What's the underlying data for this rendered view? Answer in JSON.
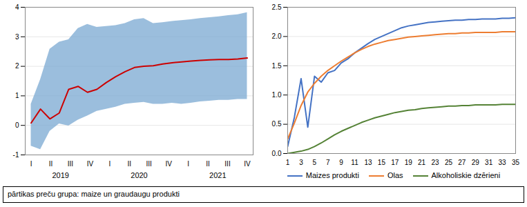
{
  "chart_data": [
    {
      "type": "line",
      "x": [
        0,
        0.4782608695652174,
        0.9565217391304348,
        1.434782608695652,
        1.9130434782608696,
        2.391304347826087,
        2.869565217391304,
        3.347826086956522,
        3.8260869565217392,
        4.304347826086957,
        4.782608695652174,
        5.260869565217391,
        5.739130434782608,
        6.217391304347826,
        6.695652173913043,
        7.173913043478261,
        7.6521739130434785,
        8.130434782608695,
        8.608695652173912,
        9.08695652173913,
        9.565217391304348,
        10.043478260869565,
        10.521739130434783,
        11
      ],
      "series": [
        {
          "color": "#cc0000",
          "values": [
            0.08,
            0.55,
            0.22,
            0.42,
            1.22,
            1.32,
            1.12,
            1.22,
            1.45,
            1.65,
            1.82,
            1.96,
            2.0,
            2.02,
            2.08,
            2.12,
            2.15,
            2.18,
            2.2,
            2.22,
            2.23,
            2.23,
            2.25,
            2.28
          ]
        }
      ],
      "band": {
        "color": "#7aa8d2",
        "lower": [
          -0.7,
          -0.82,
          -0.2,
          0.05,
          -0.02,
          0.18,
          0.32,
          0.48,
          0.55,
          0.62,
          0.72,
          0.75,
          0.78,
          0.72,
          0.72,
          0.75,
          0.72,
          0.75,
          0.8,
          0.82,
          0.85,
          0.85,
          0.88,
          0.88
        ],
        "upper": [
          0.72,
          1.55,
          2.58,
          2.82,
          2.9,
          3.28,
          3.42,
          3.32,
          3.35,
          3.38,
          3.45,
          3.58,
          3.62,
          3.45,
          3.48,
          3.52,
          3.55,
          3.58,
          3.62,
          3.65,
          3.68,
          3.72,
          3.75,
          3.82
        ]
      },
      "xlim": [
        -0.3,
        11.3
      ],
      "xticks": [
        {
          "value": 0,
          "label": "I"
        },
        {
          "value": 1,
          "label": "II"
        },
        {
          "value": 2,
          "label": "III"
        },
        {
          "value": 3,
          "label": "IV"
        },
        {
          "value": 4,
          "label": "I"
        },
        {
          "value": 5,
          "label": "II"
        },
        {
          "value": 6,
          "label": "III"
        },
        {
          "value": 7,
          "label": "IV"
        },
        {
          "value": 8,
          "label": "I"
        },
        {
          "value": 9,
          "label": "II"
        },
        {
          "value": 10,
          "label": "III"
        },
        {
          "value": 11,
          "label": "IV"
        }
      ],
      "ylim": [
        -1,
        4
      ],
      "yticks": [
        -1,
        0,
        1,
        2,
        3,
        4
      ],
      "annotations": [
        {
          "text": "2019",
          "x": 1.5
        },
        {
          "text": "2020",
          "x": 5.5
        },
        {
          "text": "2021",
          "x": 9.5
        }
      ],
      "grid": true
    },
    {
      "type": "line",
      "x": [
        1,
        2,
        3,
        4,
        5,
        6,
        7,
        8,
        9,
        10,
        11,
        12,
        13,
        14,
        15,
        16,
        17,
        18,
        19,
        20,
        21,
        22,
        23,
        24,
        25,
        26,
        27,
        28,
        29,
        30,
        31,
        32,
        33,
        34,
        35
      ],
      "series": [
        {
          "name": "Maizes produkti",
          "color": "#4472c4",
          "values": [
            0.12,
            0.62,
            1.28,
            0.45,
            1.32,
            1.22,
            1.38,
            1.42,
            1.55,
            1.62,
            1.72,
            1.8,
            1.88,
            1.95,
            2.0,
            2.05,
            2.1,
            2.15,
            2.18,
            2.2,
            2.22,
            2.24,
            2.25,
            2.26,
            2.27,
            2.28,
            2.28,
            2.29,
            2.29,
            2.3,
            2.3,
            2.3,
            2.31,
            2.31,
            2.32
          ]
        },
        {
          "name": "Olas",
          "color": "#ed7d31",
          "values": [
            0.25,
            0.52,
            0.82,
            1.05,
            1.2,
            1.32,
            1.42,
            1.5,
            1.58,
            1.65,
            1.72,
            1.78,
            1.83,
            1.87,
            1.9,
            1.93,
            1.95,
            1.97,
            1.99,
            2.0,
            2.01,
            2.02,
            2.03,
            2.04,
            2.05,
            2.05,
            2.06,
            2.06,
            2.07,
            2.07,
            2.07,
            2.07,
            2.08,
            2.08,
            2.08
          ]
        },
        {
          "name": "Alkoholiskie dzērieni",
          "color": "#548235",
          "values": [
            0.0,
            0.02,
            0.04,
            0.07,
            0.12,
            0.18,
            0.25,
            0.32,
            0.38,
            0.43,
            0.48,
            0.53,
            0.57,
            0.61,
            0.64,
            0.67,
            0.7,
            0.72,
            0.74,
            0.75,
            0.77,
            0.78,
            0.79,
            0.8,
            0.81,
            0.81,
            0.82,
            0.82,
            0.83,
            0.83,
            0.83,
            0.83,
            0.84,
            0.84,
            0.84
          ]
        }
      ],
      "xlim": [
        1,
        35
      ],
      "xticks": [
        1,
        3,
        5,
        7,
        9,
        11,
        13,
        15,
        17,
        19,
        21,
        23,
        25,
        27,
        29,
        31,
        33,
        35
      ],
      "ylim": [
        0,
        2.5
      ],
      "yticks": [
        {
          "value": 0,
          "label": "0.0"
        },
        0.5,
        {
          "value": 1,
          "label": "1.0"
        },
        1.5,
        {
          "value": 2,
          "label": "2.0"
        },
        2.5
      ],
      "grid": true,
      "legend": "bottom"
    }
  ],
  "caption": "pārtikas preču grupa: maize un graudaugu produkti"
}
